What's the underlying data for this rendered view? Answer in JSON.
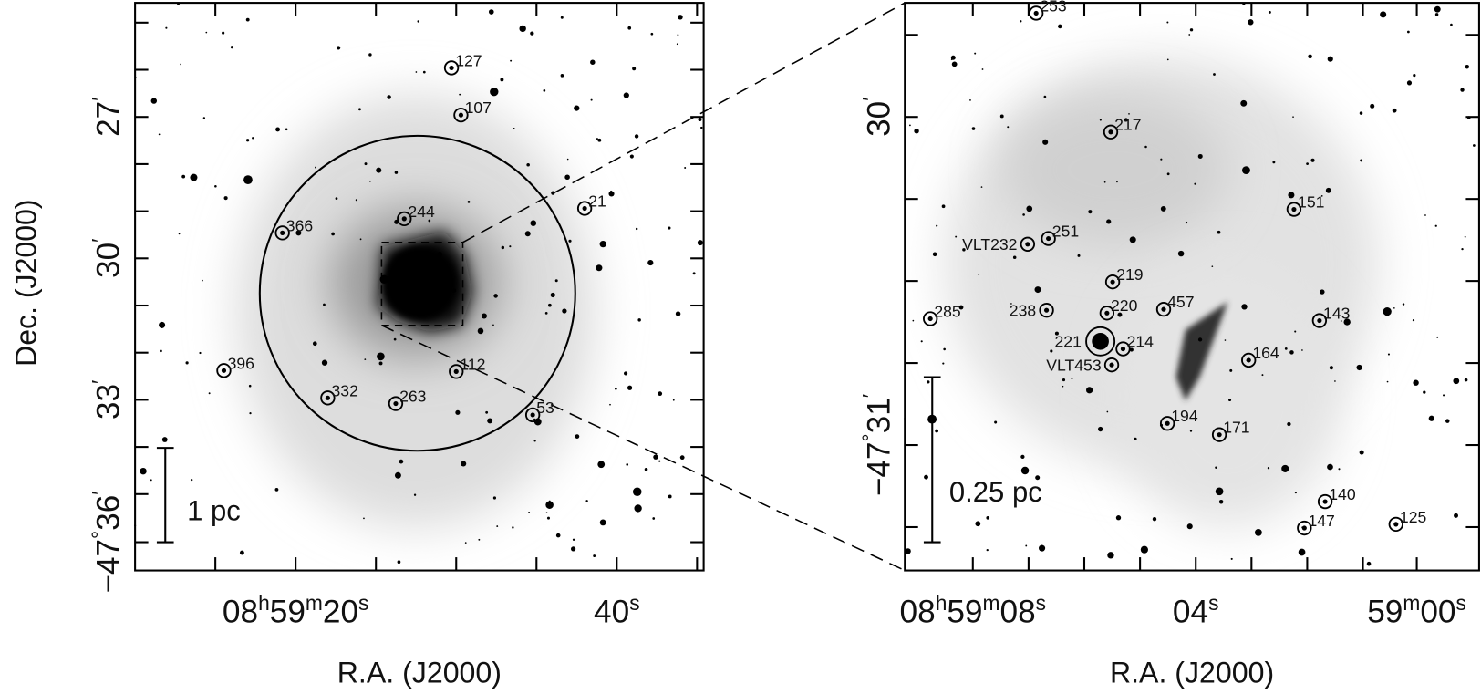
{
  "left_panel": {
    "y_axis_label": "Dec. (J2000)",
    "x_axis_label": "R.A. (J2000)",
    "dec_ticks": [
      [
        "27",
        "′"
      ],
      [
        "30",
        "′"
      ],
      [
        "33",
        "′"
      ],
      [
        "−47",
        "°",
        "36",
        "′"
      ]
    ],
    "ra_ticks": [
      [
        "08",
        "h",
        "59",
        "m",
        "20",
        "s"
      ],
      [
        "40",
        "s"
      ]
    ],
    "scale_bar": "1 pc",
    "sources": [
      "127",
      "107",
      "21",
      "244",
      "366",
      "112",
      "396",
      "332",
      "263",
      "53"
    ]
  },
  "right_panel": {
    "x_axis_label": "R.A. (J2000)",
    "dec_ticks": [
      [
        "30",
        "′"
      ],
      [
        "−47",
        "°",
        "31",
        "′"
      ]
    ],
    "ra_ticks": [
      [
        "08",
        "h",
        "59",
        "m",
        "08",
        "s"
      ],
      [
        "04",
        "s"
      ],
      [
        "59",
        "m",
        "00",
        "s"
      ]
    ],
    "scale_bar": "0.25 pc",
    "sources": [
      "253",
      "217",
      "151",
      "VLT232",
      "251",
      "219",
      "238",
      "220",
      "457",
      "285",
      "143",
      "221",
      "214",
      "164",
      "VLT453",
      "194",
      "171",
      "140",
      "147",
      "125"
    ]
  }
}
